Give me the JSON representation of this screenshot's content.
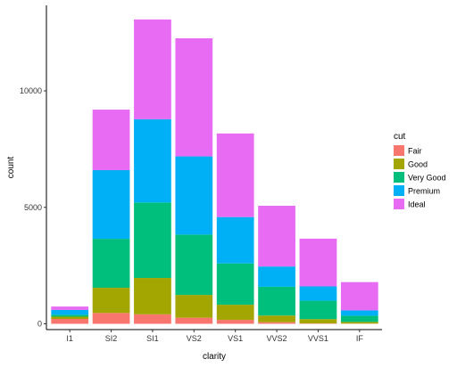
{
  "chart_data": {
    "type": "bar",
    "stacked": true,
    "xlabel": "clarity",
    "ylabel": "count",
    "categories": [
      "I1",
      "SI2",
      "SI1",
      "VS2",
      "VS1",
      "VVS2",
      "VVS1",
      "IF"
    ],
    "ylim": [
      0,
      13500
    ],
    "yticks": [
      0,
      5000,
      10000
    ],
    "grid": false,
    "legend_title": "cut",
    "legend_position": "right",
    "series": [
      {
        "name": "Fair",
        "color": "#F8766D",
        "values": [
          210,
          466,
          408,
          261,
          170,
          69,
          17,
          9
        ]
      },
      {
        "name": "Good",
        "color": "#A3A500",
        "values": [
          96,
          1081,
          1560,
          978,
          648,
          286,
          186,
          71
        ]
      },
      {
        "name": "Very Good",
        "color": "#00BF7D",
        "values": [
          84,
          2100,
          3240,
          2591,
          1775,
          1235,
          789,
          268
        ]
      },
      {
        "name": "Premium",
        "color": "#00B0F6",
        "values": [
          205,
          2949,
          3575,
          3357,
          1989,
          870,
          616,
          230
        ]
      },
      {
        "name": "Ideal",
        "color": "#E76BF3",
        "values": [
          146,
          2598,
          4282,
          5071,
          3589,
          2606,
          2047,
          1212
        ]
      }
    ]
  }
}
